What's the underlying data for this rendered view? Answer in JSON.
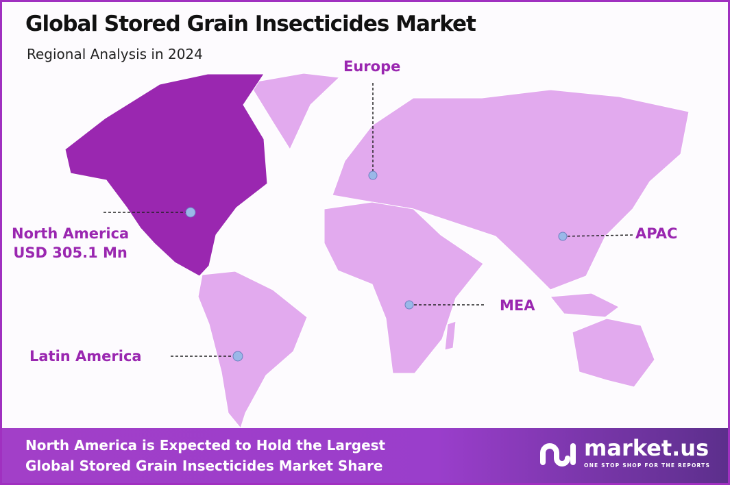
{
  "header": {
    "title": "Global Stored Grain Insecticides Market",
    "subtitle": "Regional Analysis in 2024"
  },
  "colors": {
    "highlight": "#9a27b0",
    "land": "#e2aaee",
    "marker": "#9ab8e8",
    "border": "#a030c0"
  },
  "regions": [
    {
      "name": "North America",
      "value": "USD 305.1 Mn",
      "highlighted": true
    },
    {
      "name": "Europe"
    },
    {
      "name": "APAC"
    },
    {
      "name": "MEA"
    },
    {
      "name": "Latin America"
    }
  ],
  "footer": {
    "line1": "North America  is Expected to Hold the Largest",
    "line2": "Global Stored Grain Insecticides Market Share"
  },
  "logo": {
    "word": "market.us",
    "tagline": "ONE STOP SHOP FOR THE REPORTS"
  }
}
